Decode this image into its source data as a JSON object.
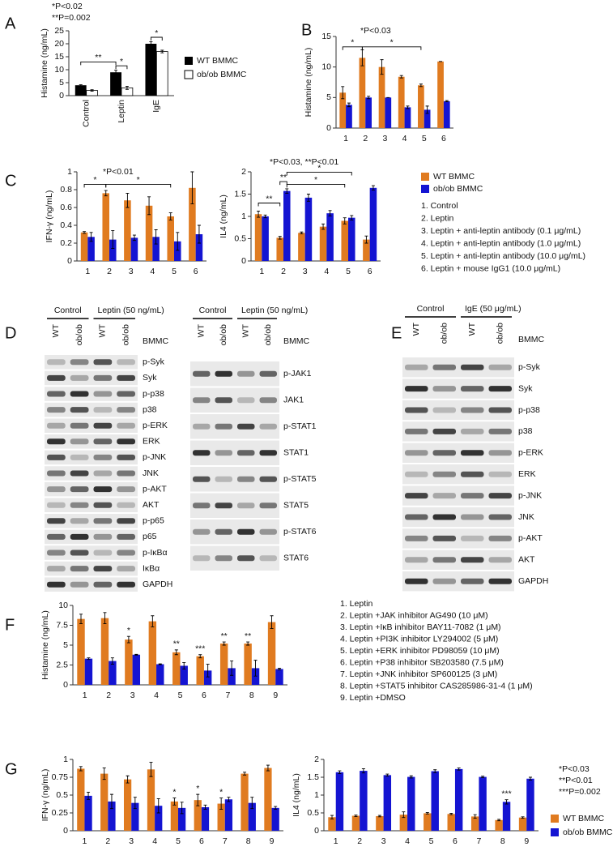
{
  "panel_labels": [
    "A",
    "B",
    "C",
    "D",
    "E",
    "F",
    "G"
  ],
  "chart_data": [
    {
      "type": "bar",
      "ylabel": "Histamine (ng/mL)",
      "categories": [
        "Control",
        "Leptin",
        "IgE"
      ],
      "series": [
        {
          "name": "WT BMMC",
          "color": "#000000",
          "values": [
            4,
            9,
            20
          ],
          "errors": [
            0.2,
            0.8,
            0.8
          ]
        },
        {
          "name": "ob/ob BMMC",
          "color": "#ffffff",
          "values": [
            2,
            3,
            17
          ],
          "errors": [
            0.3,
            0.6,
            0.5
          ]
        }
      ],
      "ylim": [
        0,
        25
      ],
      "yticks": [
        0,
        5,
        10,
        15,
        20,
        25
      ],
      "legend": "right",
      "annotations": [
        "*P<0.02",
        "**P=0.002"
      ],
      "significance": [
        "**",
        "*",
        "*"
      ]
    },
    {
      "type": "bar",
      "ylabel": "Histamine (ng/mL)",
      "categories": [
        "1",
        "2",
        "3",
        "4",
        "5",
        "6"
      ],
      "series": [
        {
          "color": "#e07b20",
          "values": [
            5.8,
            11.5,
            10,
            8.4,
            7,
            10.9
          ],
          "errors": [
            1,
            1.3,
            1.2,
            0.2,
            0.2,
            0
          ]
        },
        {
          "color": "#1414d2",
          "values": [
            3.8,
            5,
            5,
            3.4,
            3,
            4.4
          ],
          "errors": [
            0.3,
            0.2,
            0,
            0.2,
            0.6,
            0.1
          ]
        }
      ],
      "ylim": [
        0,
        15
      ],
      "yticks": [
        0,
        5,
        10,
        15
      ],
      "annotations": [
        "*P<0.03"
      ],
      "significance": [
        "*",
        "*"
      ]
    },
    {
      "type": "bar",
      "ylabel": "IFN-γ (ng/mL)",
      "categories": [
        "1",
        "2",
        "3",
        "4",
        "5",
        "6"
      ],
      "series": [
        {
          "color": "#e07b20",
          "values": [
            0.32,
            0.76,
            0.68,
            0.62,
            0.5,
            0.82
          ],
          "errors": [
            0.01,
            0.03,
            0.08,
            0.1,
            0.04,
            0.18
          ]
        },
        {
          "color": "#1414d2",
          "values": [
            0.27,
            0.24,
            0.26,
            0.27,
            0.22,
            0.3
          ],
          "errors": [
            0.05,
            0.1,
            0.03,
            0.08,
            0.1,
            0.1
          ]
        }
      ],
      "ylim": [
        0,
        1
      ],
      "yticks": [
        0,
        0.2,
        0.4,
        0.6,
        0.8,
        1
      ],
      "annotations": [
        "*P<0.01"
      ],
      "significance": [
        "*",
        "*"
      ]
    },
    {
      "type": "bar",
      "ylabel": "IL4 (ng/mL)",
      "categories": [
        "1",
        "2",
        "3",
        "4",
        "5",
        "6"
      ],
      "series": [
        {
          "name": "WT BMMC",
          "color": "#e07b20",
          "values": [
            1.05,
            0.52,
            0.63,
            0.77,
            0.9,
            0.48
          ],
          "errors": [
            0.07,
            0.03,
            0.02,
            0.06,
            0.07,
            0.08
          ]
        },
        {
          "name": "ob/ob BMMC",
          "color": "#1414d2",
          "values": [
            1.0,
            1.57,
            1.42,
            1.07,
            0.97,
            1.64
          ],
          "errors": [
            0.03,
            0.05,
            0.08,
            0.06,
            0.05,
            0.05
          ]
        }
      ],
      "ylim": [
        0,
        2
      ],
      "yticks": [
        0,
        0.5,
        1,
        1.5,
        2
      ],
      "legend": "right",
      "annotations": [
        "*P<0.03, **P<0.01"
      ],
      "significance": [
        "**",
        "**",
        "*",
        "*"
      ],
      "notes": [
        "1. Control",
        "2. Leptin",
        "3. Leptin + anti-leptin antibody (0.1 μg/mL)",
        "4. Leptin + anti-leptin antibody (1.0 μg/mL)",
        "5. Leptin + anti-leptin antibody (10.0 μg/mL)",
        "6. Leptin + mouse IgG1 (10.0 μg/mL)"
      ]
    },
    {
      "type": "bar",
      "ylabel": "Histamine (ng/mL)",
      "categories": [
        "1",
        "2",
        "3",
        "4",
        "5",
        "6",
        "7",
        "8",
        "9"
      ],
      "series": [
        {
          "color": "#e07b20",
          "values": [
            8.3,
            8.4,
            5.7,
            8,
            4.1,
            3.6,
            5.2,
            5.2,
            7.9
          ],
          "errors": [
            0.6,
            0.7,
            0.4,
            0.7,
            0.3,
            0.2,
            0.2,
            0.2,
            0.8
          ]
        },
        {
          "color": "#1414d2",
          "values": [
            3.3,
            3,
            3.8,
            2.6,
            2.4,
            1.8,
            2.1,
            2.1,
            2
          ],
          "errors": [
            0.1,
            0.4,
            0.05,
            0.05,
            0.4,
            0.8,
            0.9,
            1,
            0.1
          ]
        }
      ],
      "ylim": [
        0,
        10
      ],
      "yticks": [
        0,
        2.5,
        5,
        7.5,
        10
      ],
      "significance": [
        "*",
        "**",
        "***",
        "**",
        "**"
      ],
      "notes": [
        "1. Leptin",
        "2. Leptin +JAK inhibitor AG490 (10 μM)",
        "3. Leptin +IκB inhibitor BAY11-7082 (1 μM)",
        "4. Leptin +PI3K inhibitor LY294002 (5 μM)",
        "5. Leptin +ERK inhibitor PD98059 (10 μM)",
        "6. Leptin +P38 inhibitor SB203580 (7.5 μM)",
        "7. Leptin +JNK inhibitor SP600125 (3 μM)",
        "8. Leptin +STAT5 inhibitor CAS285986-31-4 (1 μM)",
        "9. Leptin +DMSO"
      ]
    },
    {
      "type": "bar",
      "ylabel": "IFN-γ (ng/mL)",
      "categories": [
        "1",
        "2",
        "3",
        "4",
        "5",
        "6",
        "7",
        "8",
        "9"
      ],
      "series": [
        {
          "color": "#e07b20",
          "values": [
            0.87,
            0.8,
            0.72,
            0.86,
            0.41,
            0.43,
            0.38,
            0.8,
            0.88
          ],
          "errors": [
            0.03,
            0.08,
            0.05,
            0.1,
            0.05,
            0.08,
            0.08,
            0.02,
            0.04
          ]
        },
        {
          "color": "#1414d2",
          "values": [
            0.49,
            0.41,
            0.39,
            0.35,
            0.32,
            0.33,
            0.44,
            0.39,
            0.32
          ],
          "errors": [
            0.05,
            0.1,
            0.08,
            0.1,
            0.08,
            0.03,
            0.03,
            0.08,
            0.02
          ]
        }
      ],
      "ylim": [
        0,
        1
      ],
      "yticks": [
        0,
        0.25,
        0.5,
        0.75,
        1
      ],
      "significance": [
        "*",
        "*",
        "*"
      ]
    },
    {
      "type": "bar",
      "ylabel": "IL4 (ng/mL)",
      "categories": [
        "1",
        "2",
        "3",
        "4",
        "5",
        "6",
        "7",
        "8",
        "9"
      ],
      "series": [
        {
          "name": "WT BMMC",
          "color": "#e07b20",
          "values": [
            0.38,
            0.42,
            0.41,
            0.45,
            0.49,
            0.47,
            0.4,
            0.3,
            0.37
          ],
          "errors": [
            0.05,
            0.02,
            0.02,
            0.08,
            0.02,
            0.02,
            0.05,
            0.02,
            0.02
          ]
        },
        {
          "name": "ob/ob BMMC",
          "color": "#1414d2",
          "values": [
            1.64,
            1.68,
            1.56,
            1.51,
            1.67,
            1.73,
            1.51,
            0.81,
            1.46
          ],
          "errors": [
            0.04,
            0.06,
            0.03,
            0.03,
            0.04,
            0.03,
            0.02,
            0.06,
            0.04
          ]
        }
      ],
      "ylim": [
        0,
        2
      ],
      "yticks": [
        0,
        0.5,
        1,
        1.5,
        2
      ],
      "legend": "lower right",
      "annotations": [
        "*P<0.03",
        "**P<0.01",
        "***P=0.002"
      ],
      "significance": [
        "***"
      ]
    }
  ],
  "blots": [
    {
      "groups": [
        "Control",
        "Leptin (50 ng/mL)"
      ],
      "lanes": [
        "WT",
        "ob/ob",
        "WT",
        "ob/ob"
      ],
      "cell_label": "BMMC",
      "rows": [
        "p-Syk",
        "Syk",
        "p-p38",
        "p38",
        "p-ERK",
        "ERK",
        "p-JNK",
        "JNK",
        "p-AKT",
        "AKT",
        "p-p65",
        "p65",
        "p-IκBα",
        "IκBα",
        "GAPDH"
      ]
    },
    {
      "groups": [
        "Control",
        "Leptin (50 ng/mL)"
      ],
      "lanes": [
        "WT",
        "ob/ob",
        "WT",
        "ob/ob"
      ],
      "cell_label": "BMMC",
      "rows": [
        "p-JAK1",
        "JAK1",
        "p-STAT1",
        "STAT1",
        "p-STAT5",
        "STAT5",
        "p-STAT6",
        "STAT6"
      ]
    },
    {
      "groups": [
        "Control",
        "IgE (50 μg/mL)"
      ],
      "lanes": [
        "WT",
        "ob/ob",
        "WT",
        "ob/ob"
      ],
      "cell_label": "BMMC",
      "rows": [
        "p-Syk",
        "Syk",
        "p-p38",
        "p38",
        "p-ERK",
        "ERK",
        "p-JNK",
        "JNK",
        "p-AKT",
        "AKT",
        "GAPDH"
      ]
    }
  ]
}
